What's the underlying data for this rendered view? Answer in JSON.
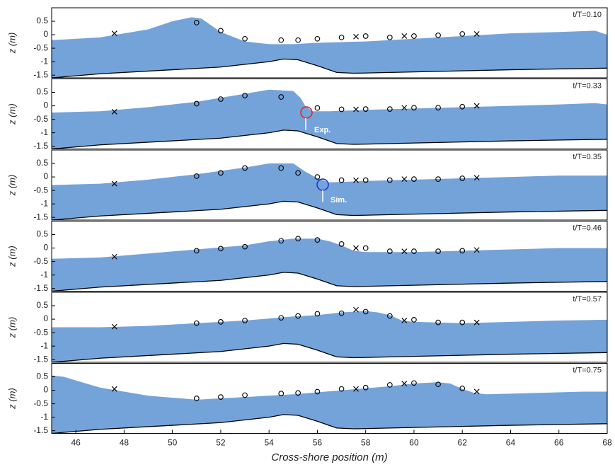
{
  "chart_data": [
    {
      "type": "area",
      "title": "t/T=0.10",
      "ylabel": "z (m)",
      "xlim": [
        45,
        68
      ],
      "ylim": [
        -1.6,
        1.0
      ],
      "yticks": [
        -1.5,
        -1,
        -0.5,
        0,
        0.5
      ],
      "series": [
        {
          "type": "area",
          "color": "#74a3da",
          "x": [
            45,
            47,
            49,
            50,
            50.8,
            51.2,
            52,
            53,
            54,
            55,
            56,
            58,
            60,
            62,
            64,
            66,
            67.5,
            68
          ],
          "values": [
            -0.2,
            -0.1,
            0.2,
            0.5,
            0.65,
            0.6,
            0.1,
            -0.25,
            -0.35,
            -0.35,
            -0.3,
            -0.25,
            -0.15,
            -0.05,
            0.05,
            0.1,
            0.15,
            0.0
          ]
        },
        {
          "type": "line",
          "color": "#000000",
          "x": [
            45,
            47,
            50,
            52,
            54,
            54.6,
            55.2,
            56,
            56.8,
            57.5,
            60,
            64,
            68
          ],
          "values": [
            -1.6,
            -1.45,
            -1.3,
            -1.2,
            -1.0,
            -0.9,
            -0.93,
            -1.15,
            -1.4,
            -1.43,
            -1.38,
            -1.3,
            -1.24
          ]
        },
        {
          "type": "scatter",
          "marker": "o",
          "color": "#000000",
          "x": [
            51,
            52,
            53,
            54.5,
            55.2,
            56,
            57,
            58,
            59,
            60,
            61,
            62
          ],
          "values": [
            0.45,
            0.15,
            -0.15,
            -0.2,
            -0.2,
            -0.15,
            -0.1,
            -0.05,
            -0.1,
            -0.05,
            -0.02,
            0.03
          ]
        },
        {
          "type": "scatter",
          "marker": "x",
          "color": "#000000",
          "x": [
            47.6,
            57.6,
            59.6,
            62.6
          ],
          "values": [
            0.05,
            -0.07,
            -0.05,
            0.03
          ]
        }
      ]
    },
    {
      "type": "area",
      "title": "t/T=0.33",
      "ylabel": "z (m)",
      "annotation": "Exp.",
      "xlim": [
        45,
        68
      ],
      "ylim": [
        -1.6,
        1.0
      ],
      "yticks": [
        -1.5,
        -1,
        -0.5,
        0,
        0.5
      ],
      "series": [
        {
          "type": "area",
          "color": "#74a3da",
          "x": [
            45,
            47,
            49,
            51,
            53,
            54,
            55,
            55.3,
            55.5,
            55.8,
            56.5,
            58,
            60,
            62,
            64,
            66,
            67.5,
            68
          ],
          "values": [
            -0.25,
            -0.2,
            -0.05,
            0.15,
            0.45,
            0.6,
            0.55,
            0.3,
            0.0,
            -0.2,
            -0.2,
            -0.15,
            -0.1,
            -0.05,
            0.0,
            0.05,
            0.1,
            0.05
          ]
        },
        {
          "type": "line",
          "color": "#000000",
          "x": [
            45,
            47,
            50,
            52,
            54,
            54.6,
            55.2,
            56,
            56.8,
            57.5,
            60,
            64,
            68
          ],
          "values": [
            -1.6,
            -1.45,
            -1.3,
            -1.2,
            -1.0,
            -0.9,
            -0.93,
            -1.15,
            -1.4,
            -1.43,
            -1.38,
            -1.3,
            -1.24
          ]
        },
        {
          "type": "scatter",
          "marker": "o",
          "color": "#000000",
          "x": [
            51,
            52,
            53,
            54.5,
            56,
            57,
            58,
            59,
            60,
            61,
            62
          ],
          "values": [
            0.08,
            0.25,
            0.38,
            0.33,
            -0.08,
            -0.13,
            -0.12,
            -0.12,
            -0.07,
            -0.07,
            -0.03
          ]
        },
        {
          "type": "scatter",
          "marker": "x",
          "color": "#000000",
          "x": [
            47.6,
            57.6,
            59.6,
            62.6
          ],
          "values": [
            -0.22,
            -0.13,
            -0.07,
            0.0
          ]
        }
      ]
    },
    {
      "type": "area",
      "title": "t/T=0.35",
      "ylabel": "z (m)",
      "annotation": "Sim.",
      "xlim": [
        45,
        68
      ],
      "ylim": [
        -1.6,
        1.0
      ],
      "yticks": [
        -1.5,
        -1,
        -0.5,
        0,
        0.5
      ],
      "series": [
        {
          "type": "area",
          "color": "#74a3da",
          "x": [
            45,
            47,
            49,
            51,
            53,
            54,
            55,
            55.5,
            56,
            56.5,
            58,
            60,
            62,
            64,
            66,
            68
          ],
          "values": [
            -0.3,
            -0.25,
            -0.1,
            0.1,
            0.35,
            0.5,
            0.5,
            0.2,
            -0.05,
            -0.2,
            -0.15,
            -0.1,
            -0.05,
            0.0,
            0.05,
            0.05
          ]
        },
        {
          "type": "line",
          "color": "#000000",
          "x": [
            45,
            47,
            50,
            52,
            54,
            54.6,
            55.2,
            56,
            56.8,
            57.5,
            60,
            64,
            68
          ],
          "values": [
            -1.6,
            -1.45,
            -1.3,
            -1.2,
            -1.0,
            -0.9,
            -0.93,
            -1.15,
            -1.4,
            -1.43,
            -1.38,
            -1.3,
            -1.24
          ]
        },
        {
          "type": "scatter",
          "marker": "o",
          "color": "#000000",
          "x": [
            51,
            52,
            53,
            54.5,
            55.2,
            56,
            57,
            58,
            59,
            60,
            61,
            62
          ],
          "values": [
            0.03,
            0.15,
            0.33,
            0.33,
            0.15,
            0.0,
            -0.12,
            -0.12,
            -0.12,
            -0.08,
            -0.08,
            -0.05
          ]
        },
        {
          "type": "scatter",
          "marker": "x",
          "color": "#000000",
          "x": [
            47.6,
            57.6,
            59.6,
            62.6
          ],
          "values": [
            -0.25,
            -0.12,
            -0.08,
            -0.03
          ]
        }
      ]
    },
    {
      "type": "area",
      "title": "t/T=0.46",
      "ylabel": "z (m)",
      "xlim": [
        45,
        68
      ],
      "ylim": [
        -1.6,
        1.0
      ],
      "yticks": [
        -1.5,
        -1,
        -0.5,
        0,
        0.5
      ],
      "series": [
        {
          "type": "area",
          "color": "#74a3da",
          "x": [
            45,
            47,
            49,
            51,
            53,
            54,
            55,
            56,
            56.5,
            57,
            57.5,
            58,
            60,
            62,
            64,
            66,
            68
          ],
          "values": [
            -0.4,
            -0.35,
            -0.2,
            -0.05,
            0.1,
            0.25,
            0.35,
            0.35,
            0.25,
            0.1,
            -0.1,
            -0.15,
            -0.15,
            -0.1,
            -0.05,
            0.0,
            0.0
          ]
        },
        {
          "type": "line",
          "color": "#000000",
          "x": [
            45,
            47,
            50,
            52,
            54,
            54.6,
            55.2,
            56,
            56.8,
            57.5,
            60,
            64,
            68
          ],
          "values": [
            -1.6,
            -1.45,
            -1.3,
            -1.2,
            -1.0,
            -0.9,
            -0.93,
            -1.15,
            -1.4,
            -1.43,
            -1.38,
            -1.3,
            -1.24
          ]
        },
        {
          "type": "scatter",
          "marker": "o",
          "color": "#000000",
          "x": [
            51,
            52,
            53,
            54.5,
            55.2,
            56,
            57,
            58,
            59,
            60,
            61,
            62
          ],
          "values": [
            -0.1,
            -0.02,
            0.05,
            0.27,
            0.35,
            0.3,
            0.15,
            0.0,
            -0.12,
            -0.12,
            -0.12,
            -0.1
          ]
        },
        {
          "type": "scatter",
          "marker": "x",
          "color": "#000000",
          "x": [
            47.6,
            57.6,
            59.6,
            62.6
          ],
          "values": [
            -0.32,
            0.0,
            -0.12,
            -0.07
          ]
        }
      ]
    },
    {
      "type": "area",
      "title": "t/T=0.57",
      "ylabel": "z (m)",
      "xlim": [
        45,
        68
      ],
      "ylim": [
        -1.6,
        1.0
      ],
      "yticks": [
        -1.5,
        -1,
        -0.5,
        0,
        0.5
      ],
      "series": [
        {
          "type": "area",
          "color": "#74a3da",
          "x": [
            45,
            47,
            49,
            51,
            53,
            55,
            56,
            57,
            58,
            58.5,
            59,
            59.5,
            60,
            62,
            64,
            66,
            68
          ],
          "values": [
            -0.3,
            -0.3,
            -0.25,
            -0.15,
            -0.05,
            0.1,
            0.15,
            0.25,
            0.3,
            0.25,
            0.15,
            -0.05,
            -0.1,
            -0.15,
            -0.1,
            -0.05,
            -0.02
          ]
        },
        {
          "type": "line",
          "color": "#000000",
          "x": [
            45,
            47,
            50,
            52,
            54,
            54.6,
            55.2,
            56,
            56.8,
            57.5,
            60,
            64,
            68
          ],
          "values": [
            -1.6,
            -1.45,
            -1.3,
            -1.2,
            -1.0,
            -0.9,
            -0.93,
            -1.15,
            -1.4,
            -1.43,
            -1.38,
            -1.3,
            -1.24
          ]
        },
        {
          "type": "scatter",
          "marker": "o",
          "color": "#000000",
          "x": [
            51,
            52,
            53,
            54.5,
            55.2,
            56,
            57,
            58,
            59,
            60,
            61,
            62
          ],
          "values": [
            -0.15,
            -0.1,
            -0.05,
            0.05,
            0.12,
            0.2,
            0.22,
            0.28,
            0.12,
            -0.02,
            -0.12,
            -0.12
          ]
        },
        {
          "type": "scatter",
          "marker": "x",
          "color": "#000000",
          "x": [
            47.6,
            57.6,
            59.6,
            62.6
          ],
          "values": [
            -0.28,
            0.35,
            -0.05,
            -0.12
          ]
        }
      ]
    },
    {
      "type": "area",
      "title": "t/T=0.75",
      "ylabel": "z (m)",
      "xlabel": "Cross-shore position (m)",
      "xlim": [
        45,
        68
      ],
      "ylim": [
        -1.6,
        1.0
      ],
      "yticks": [
        -1.5,
        -1,
        -0.5,
        0,
        0.5
      ],
      "xticks": [
        46,
        48,
        50,
        52,
        54,
        56,
        58,
        60,
        62,
        64,
        66,
        68
      ],
      "series": [
        {
          "type": "area",
          "color": "#74a3da",
          "x": [
            45,
            45.5,
            47,
            49,
            51,
            53,
            55,
            57,
            59,
            60,
            61,
            61.5,
            62,
            62.5,
            63,
            65,
            67,
            68
          ],
          "values": [
            0.55,
            0.5,
            0.1,
            -0.2,
            -0.35,
            -0.25,
            -0.15,
            0.0,
            0.15,
            0.25,
            0.3,
            0.25,
            0.05,
            -0.1,
            -0.15,
            -0.1,
            -0.05,
            -0.05
          ]
        },
        {
          "type": "line",
          "color": "#000000",
          "x": [
            45,
            47,
            50,
            52,
            54,
            54.6,
            55.2,
            56,
            56.8,
            57.5,
            60,
            64,
            68
          ],
          "values": [
            -1.6,
            -1.45,
            -1.3,
            -1.2,
            -1.0,
            -0.9,
            -0.93,
            -1.15,
            -1.4,
            -1.43,
            -1.38,
            -1.3,
            -1.24
          ]
        },
        {
          "type": "scatter",
          "marker": "o",
          "color": "#000000",
          "x": [
            51,
            52,
            53,
            54.5,
            55.2,
            56,
            57,
            58,
            59,
            60,
            61,
            62
          ],
          "values": [
            -0.3,
            -0.25,
            -0.18,
            -0.12,
            -0.1,
            -0.05,
            0.05,
            0.1,
            0.2,
            0.27,
            0.22,
            0.07
          ]
        },
        {
          "type": "scatter",
          "marker": "x",
          "color": "#000000",
          "x": [
            47.6,
            57.6,
            59.6,
            62.6
          ],
          "values": [
            0.05,
            0.05,
            0.25,
            -0.05
          ]
        }
      ]
    }
  ]
}
